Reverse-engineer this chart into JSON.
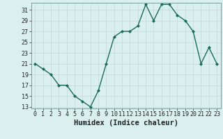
{
  "x": [
    0,
    1,
    2,
    3,
    4,
    5,
    6,
    7,
    8,
    9,
    10,
    11,
    12,
    13,
    14,
    15,
    16,
    17,
    18,
    19,
    20,
    21,
    22,
    23
  ],
  "y": [
    21,
    20,
    19,
    17,
    17,
    15,
    14,
    13,
    16,
    21,
    26,
    27,
    27,
    28,
    32,
    29,
    32,
    32,
    30,
    29,
    27,
    21,
    24,
    21
  ],
  "line_color": "#1a6b5a",
  "marker": "D",
  "marker_size": 2.0,
  "bg_color": "#d9f0ee",
  "grid_color": "#c4d8d5",
  "xlabel": "Humidex (Indice chaleur)",
  "ylim_min": 13,
  "ylim_max": 32,
  "xlim_min": 0,
  "xlim_max": 23,
  "yticks": [
    13,
    15,
    17,
    19,
    21,
    23,
    25,
    27,
    29,
    31
  ],
  "xticks": [
    0,
    1,
    2,
    3,
    4,
    5,
    6,
    7,
    8,
    9,
    10,
    11,
    12,
    13,
    14,
    15,
    16,
    17,
    18,
    19,
    20,
    21,
    22,
    23
  ],
  "tick_label_fontsize": 6.0,
  "xlabel_fontsize": 7.5,
  "linewidth": 1.0
}
